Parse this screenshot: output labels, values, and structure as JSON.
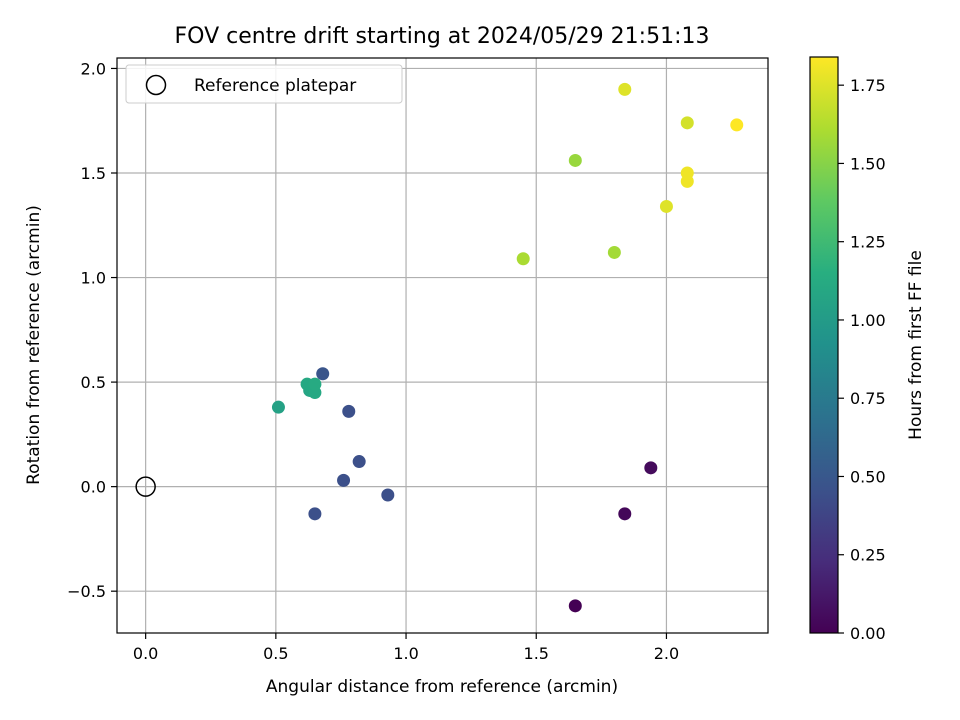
{
  "chart_data": {
    "type": "scatter",
    "title": "FOV centre drift starting at 2024/05/29 21:51:13",
    "xlabel": "Angular distance from reference (arcmin)",
    "ylabel": "Rotation from reference (arcmin)",
    "colorbar_label": "Hours from first FF file",
    "xlim": [
      -0.11,
      2.39
    ],
    "ylim": [
      -0.7,
      2.05
    ],
    "clim": [
      0.0,
      1.84
    ],
    "grid": true,
    "legend_position": "upper-left",
    "x_ticks": [
      {
        "value": 0.0,
        "label": "0.0"
      },
      {
        "value": 0.5,
        "label": "0.5"
      },
      {
        "value": 1.0,
        "label": "1.0"
      },
      {
        "value": 1.5,
        "label": "1.5"
      },
      {
        "value": 2.0,
        "label": "2.0"
      }
    ],
    "y_ticks": [
      {
        "value": -0.5,
        "label": "−0.5"
      },
      {
        "value": 0.0,
        "label": "0.0"
      },
      {
        "value": 0.5,
        "label": "0.5"
      },
      {
        "value": 1.0,
        "label": "1.0"
      },
      {
        "value": 1.5,
        "label": "1.5"
      },
      {
        "value": 2.0,
        "label": "2.0"
      }
    ],
    "colorbar_ticks": [
      {
        "value": 0.0,
        "label": "0.00"
      },
      {
        "value": 0.25,
        "label": "0.25"
      },
      {
        "value": 0.5,
        "label": "0.50"
      },
      {
        "value": 0.75,
        "label": "0.75"
      },
      {
        "value": 1.0,
        "label": "1.00"
      },
      {
        "value": 1.25,
        "label": "1.25"
      },
      {
        "value": 1.5,
        "label": "1.50"
      },
      {
        "value": 1.75,
        "label": "1.75"
      }
    ],
    "reference": {
      "name": "Reference platepar",
      "x": 0.0,
      "y": 0.0
    },
    "points": [
      {
        "x": 1.65,
        "y": -0.57,
        "c": 0.0
      },
      {
        "x": 1.84,
        "y": -0.13,
        "c": 0.03
      },
      {
        "x": 1.94,
        "y": 0.09,
        "c": 0.05
      },
      {
        "x": 0.65,
        "y": -0.13,
        "c": 0.45
      },
      {
        "x": 0.76,
        "y": 0.03,
        "c": 0.45
      },
      {
        "x": 0.93,
        "y": -0.04,
        "c": 0.45
      },
      {
        "x": 0.82,
        "y": 0.12,
        "c": 0.45
      },
      {
        "x": 0.78,
        "y": 0.36,
        "c": 0.45
      },
      {
        "x": 0.68,
        "y": 0.54,
        "c": 0.48
      },
      {
        "x": 0.51,
        "y": 0.38,
        "c": 1.05
      },
      {
        "x": 0.63,
        "y": 0.46,
        "c": 1.08
      },
      {
        "x": 0.65,
        "y": 0.45,
        "c": 1.1
      },
      {
        "x": 0.62,
        "y": 0.49,
        "c": 1.1
      },
      {
        "x": 0.65,
        "y": 0.49,
        "c": 1.12
      },
      {
        "x": 1.45,
        "y": 1.09,
        "c": 1.6
      },
      {
        "x": 1.8,
        "y": 1.12,
        "c": 1.58
      },
      {
        "x": 1.65,
        "y": 1.56,
        "c": 1.55
      },
      {
        "x": 1.84,
        "y": 1.9,
        "c": 1.75
      },
      {
        "x": 2.0,
        "y": 1.34,
        "c": 1.75
      },
      {
        "x": 2.08,
        "y": 1.46,
        "c": 1.8
      },
      {
        "x": 2.08,
        "y": 1.5,
        "c": 1.8
      },
      {
        "x": 2.08,
        "y": 1.74,
        "c": 1.72
      },
      {
        "x": 2.27,
        "y": 1.73,
        "c": 1.84
      }
    ]
  }
}
